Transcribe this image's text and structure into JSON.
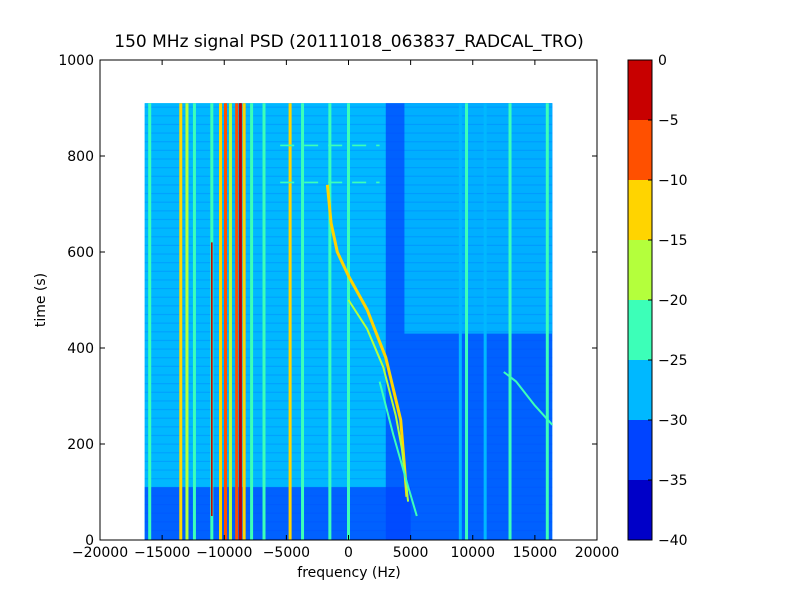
{
  "chart_data": {
    "type": "heatmap",
    "title": "150 MHz signal PSD (20111018_063837_RADCAL_TRO)",
    "xlabel": "frequency (Hz)",
    "ylabel": "time (s)",
    "xlim": [
      -20000,
      20000
    ],
    "ylim": [
      0,
      1000
    ],
    "x_ticks": [
      "−20000",
      "−15000",
      "−10000",
      "−5000",
      "0",
      "5000",
      "10000",
      "15000",
      "20000"
    ],
    "x_tick_values": [
      -20000,
      -15000,
      -10000,
      -5000,
      0,
      5000,
      10000,
      15000,
      20000
    ],
    "y_ticks": [
      "0",
      "200",
      "400",
      "600",
      "800",
      "1000"
    ],
    "y_tick_values": [
      0,
      200,
      400,
      600,
      800,
      1000
    ],
    "data_extent": {
      "x": [
        -16400,
        16400
      ],
      "y": [
        0,
        910
      ]
    },
    "colorbar": {
      "levels": [
        -40,
        -35,
        -30,
        -25,
        -20,
        -15,
        -10,
        -5,
        0
      ],
      "tick_labels": [
        "−40",
        "−35",
        "−30",
        "−25",
        "−20",
        "−15",
        "−10",
        "−5",
        "0"
      ],
      "colors": [
        "#0000c8",
        "#0044ff",
        "#00b8ff",
        "#3cffb8",
        "#b4ff3c",
        "#ffd400",
        "#ff5000",
        "#c80000"
      ]
    },
    "background_bands": [
      {
        "x": [
          -16400,
          -1500
        ],
        "y": [
          0,
          910
        ],
        "level": -30
      },
      {
        "x": [
          -1500,
          5000
        ],
        "y": [
          0,
          910
        ],
        "level": -30
      },
      {
        "x": [
          3000,
          16400
        ],
        "y": [
          0,
          910
        ],
        "level": -35
      },
      {
        "x": [
          -16400,
          5000
        ],
        "y": [
          0,
          110
        ],
        "level": -35
      },
      {
        "x": [
          4500,
          16400
        ],
        "y": [
          430,
          910
        ],
        "level": -30
      }
    ],
    "vertical_lines": [
      {
        "x": -16000,
        "y": [
          0,
          910
        ],
        "level": -25
      },
      {
        "x": -13500,
        "y": [
          0,
          910
        ],
        "level": -15
      },
      {
        "x": -13000,
        "y": [
          0,
          910
        ],
        "level": -20
      },
      {
        "x": -12400,
        "y": [
          0,
          910
        ],
        "level": -25
      },
      {
        "x": -11000,
        "y": [
          0,
          910
        ],
        "level": -25
      },
      {
        "x": -10300,
        "y": [
          0,
          910
        ],
        "level": -15
      },
      {
        "x": -9900,
        "y": [
          0,
          910
        ],
        "level": -10
      },
      {
        "x": -9500,
        "y": [
          0,
          910
        ],
        "level": -20
      },
      {
        "x": -9000,
        "y": [
          0,
          910
        ],
        "level": -10
      },
      {
        "x": -8700,
        "y": [
          0,
          910
        ],
        "level": -5
      },
      {
        "x": -8400,
        "y": [
          0,
          910
        ],
        "level": -15
      },
      {
        "x": -7800,
        "y": [
          0,
          910
        ],
        "level": -25
      },
      {
        "x": -6800,
        "y": [
          0,
          910
        ],
        "level": -25
      },
      {
        "x": -4700,
        "y": [
          0,
          910
        ],
        "level": -15
      },
      {
        "x": -3700,
        "y": [
          0,
          910
        ],
        "level": -25
      },
      {
        "x": -1500,
        "y": [
          0,
          910
        ],
        "level": -25
      },
      {
        "x": 0,
        "y": [
          0,
          910
        ],
        "level": -25
      },
      {
        "x": 9000,
        "y": [
          0,
          910
        ],
        "level": -30
      },
      {
        "x": 9500,
        "y": [
          0,
          910
        ],
        "level": -25
      },
      {
        "x": 11000,
        "y": [
          0,
          910
        ],
        "level": -30
      },
      {
        "x": 13000,
        "y": [
          0,
          910
        ],
        "level": -25
      },
      {
        "x": 16000,
        "y": [
          0,
          910
        ],
        "level": -25
      }
    ],
    "red_core_lines": [
      {
        "x": -11000,
        "y": [
          50,
          620
        ],
        "level": -5
      },
      {
        "x": -8700,
        "y": [
          0,
          910
        ],
        "level": -5
      }
    ],
    "drift_tracks": [
      {
        "points": [
          [
            -1700,
            740
          ],
          [
            -1400,
            660
          ],
          [
            -900,
            600
          ],
          [
            0,
            550
          ],
          [
            1500,
            480
          ],
          [
            3000,
            380
          ],
          [
            4200,
            250
          ],
          [
            4700,
            90
          ]
        ],
        "level": -15
      },
      {
        "points": [
          [
            0,
            500
          ],
          [
            1500,
            440
          ],
          [
            2800,
            360
          ],
          [
            3800,
            260
          ],
          [
            4300,
            190
          ],
          [
            4800,
            80
          ]
        ],
        "level": -20
      },
      {
        "points": [
          [
            2500,
            330
          ],
          [
            3600,
            220
          ],
          [
            4700,
            120
          ],
          [
            5500,
            50
          ]
        ],
        "level": -25
      },
      {
        "points": [
          [
            12500,
            350
          ],
          [
            13500,
            330
          ],
          [
            15000,
            280
          ],
          [
            16400,
            240
          ]
        ],
        "level": -25
      }
    ],
    "dashed_rows": [
      {
        "y": 822,
        "x": [
          -5500,
          2500
        ],
        "level": -25
      },
      {
        "y": 745,
        "x": [
          -5500,
          2500
        ],
        "level": -25
      }
    ]
  }
}
